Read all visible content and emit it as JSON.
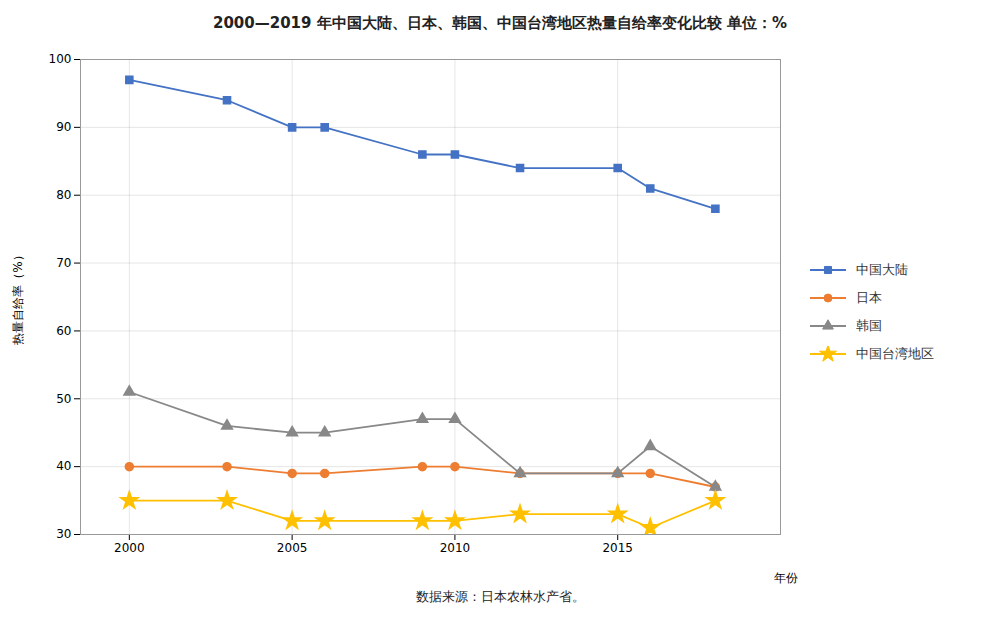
{
  "chart_data": {
    "type": "line",
    "title": "2000—2019 年中国大陆、日本、韩国、中国台湾地区热量自给率变化比较  单位：%",
    "caption": "数据来源：日本农林水产省。",
    "x_label": "年份",
    "y_label": "热量自给率（%）",
    "x": [
      2000,
      2003,
      2005,
      2006,
      2009,
      2010,
      2012,
      2015,
      2016,
      2018
    ],
    "series": [
      {
        "name": "中国大陆",
        "color": "#4472C4",
        "marker": "square",
        "values": [
          97,
          94,
          90,
          90,
          86,
          86,
          84,
          84,
          81,
          78
        ]
      },
      {
        "name": "日本",
        "color": "#ED7D31",
        "marker": "circle",
        "values": [
          40,
          40,
          39,
          39,
          40,
          40,
          39,
          39,
          39,
          37
        ]
      },
      {
        "name": "韩国",
        "color": "#888888",
        "marker": "triangle",
        "values": [
          51,
          46,
          45,
          45,
          47,
          47,
          39,
          39,
          43,
          37
        ]
      },
      {
        "name": "中国台湾地区",
        "color": "#FFC000",
        "marker": "star",
        "values": [
          35,
          35,
          32,
          32,
          32,
          32,
          33,
          33,
          31,
          35
        ]
      }
    ],
    "xlim": [
      1998.5,
      2020
    ],
    "xticks": [
      2000,
      2005,
      2010,
      2015
    ],
    "ylim": [
      30,
      100
    ],
    "yticks": [
      30,
      40,
      50,
      60,
      70,
      80,
      90,
      100
    ],
    "grid": true,
    "legend": "right"
  }
}
